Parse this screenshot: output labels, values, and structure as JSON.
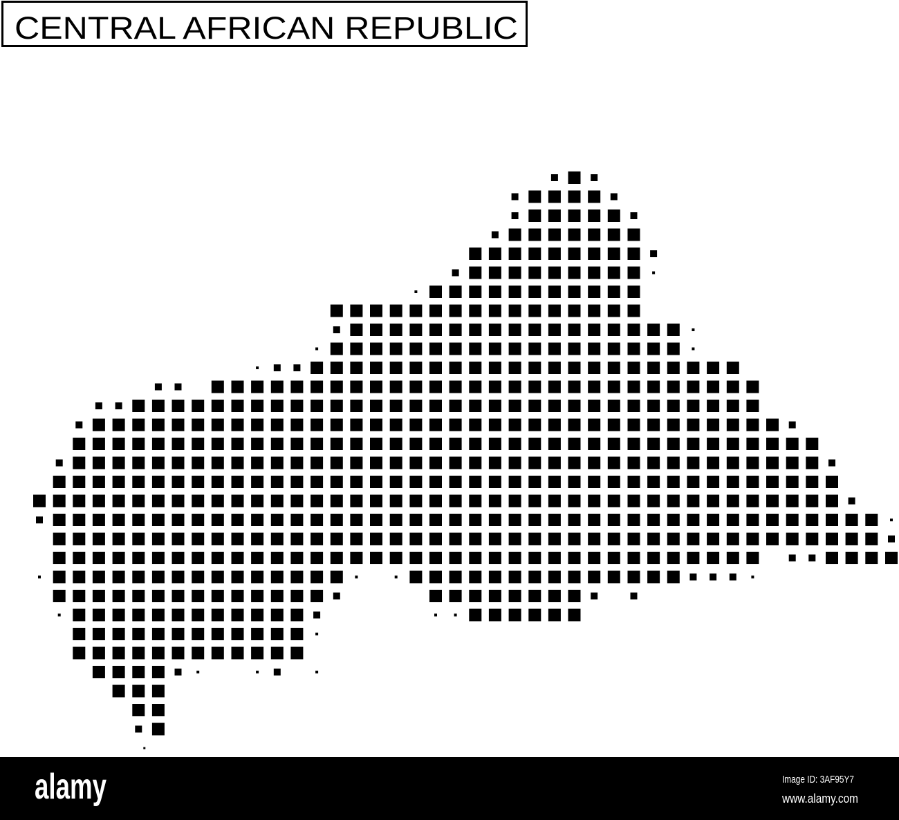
{
  "title": "CENTRAL AFRICAN REPUBLIC",
  "map": {
    "style": "halftone square-dot map",
    "dot_color": "#000000",
    "background": "#ffffff"
  },
  "footer": {
    "logo": "alamy",
    "image_id": "Image ID: 3AF95Y7",
    "url": "www.alamy.com",
    "background": "#000000",
    "text_color": "#ffffff"
  }
}
